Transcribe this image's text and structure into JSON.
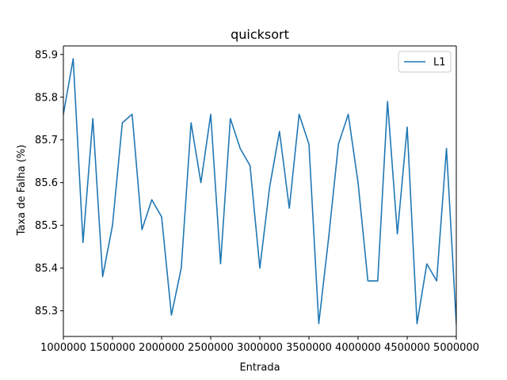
{
  "chart_data": {
    "type": "line",
    "title": "quicksort",
    "xlabel": "Entrada",
    "ylabel": "Taxa de Falha (%)",
    "xlim": [
      1000000,
      5000000
    ],
    "ylim": [
      85.24,
      85.92
    ],
    "xticks": [
      1000000,
      1500000,
      2000000,
      2500000,
      3000000,
      3500000,
      4000000,
      4500000,
      5000000
    ],
    "xtick_labels": [
      "1000000",
      "1500000",
      "2000000",
      "2500000",
      "3000000",
      "3500000",
      "4000000",
      "4500000",
      "5000000"
    ],
    "yticks": [
      85.3,
      85.4,
      85.5,
      85.6,
      85.7,
      85.8,
      85.9
    ],
    "ytick_labels": [
      "85.3",
      "85.4",
      "85.5",
      "85.6",
      "85.7",
      "85.8",
      "85.9"
    ],
    "grid": false,
    "legend_position": "top-right",
    "colors": {
      "L1": "#1f77b4"
    },
    "series": [
      {
        "name": "L1",
        "x": [
          1000000,
          1100000,
          1200000,
          1300000,
          1400000,
          1500000,
          1600000,
          1700000,
          1800000,
          1900000,
          2000000,
          2100000,
          2200000,
          2300000,
          2400000,
          2500000,
          2600000,
          2700000,
          2800000,
          2900000,
          3000000,
          3100000,
          3200000,
          3300000,
          3400000,
          3500000,
          3600000,
          3700000,
          3800000,
          3900000,
          4000000,
          4100000,
          4200000,
          4300000,
          4400000,
          4500000,
          4600000,
          4700000,
          4800000,
          4900000,
          5000000
        ],
        "values": [
          85.76,
          85.89,
          85.46,
          85.75,
          85.38,
          85.5,
          85.74,
          85.76,
          85.49,
          85.56,
          85.52,
          85.29,
          85.4,
          85.74,
          85.6,
          85.76,
          85.41,
          85.75,
          85.68,
          85.64,
          85.4,
          85.59,
          85.72,
          85.54,
          85.76,
          85.69,
          85.27,
          85.47,
          85.69,
          85.76,
          85.6,
          85.37,
          85.37,
          85.79,
          85.48,
          85.73,
          85.27,
          85.41,
          85.37,
          85.68,
          85.27
        ]
      }
    ]
  }
}
